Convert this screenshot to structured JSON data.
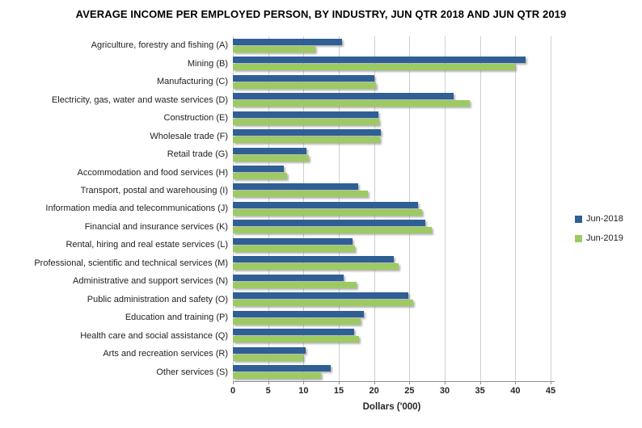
{
  "chart_data": {
    "type": "bar",
    "orientation": "horizontal",
    "title": "AVERAGE INCOME PER EMPLOYED PERSON, BY INDUSTRY, JUN QTR 2018 AND JUN QTR 2019",
    "xlabel": "Dollars ('000)",
    "xlim": [
      0,
      45
    ],
    "xticks": [
      0,
      5,
      10,
      15,
      20,
      25,
      30,
      35,
      40,
      45
    ],
    "grid": "vertical",
    "legend_position": "right",
    "categories": [
      "Agriculture, forestry and fishing (A)",
      "Mining (B)",
      "Manufacturing (C)",
      "Electricity, gas, water and waste services (D)",
      "Construction (E)",
      "Wholesale trade (F)",
      "Retail trade (G)",
      "Accommodation and food services (H)",
      "Transport, postal and warehousing (I)",
      "Information media and telecommunications (J)",
      "Financial and insurance services (K)",
      "Rental, hiring and real estate services (L)",
      "Professional, scientific and technical services (M)",
      "Administrative and support services (N)",
      "Public administration and safety (O)",
      "Education and training (P)",
      "Health care and social assistance (Q)",
      "Arts and recreation services (R)",
      "Other services (S)"
    ],
    "series": [
      {
        "name": "Jun-2018",
        "color": "#2F5F94",
        "values": [
          15.5,
          41.5,
          20.0,
          31.3,
          20.6,
          21.0,
          10.4,
          7.2,
          17.8,
          26.2,
          27.3,
          17.0,
          22.8,
          15.7,
          24.9,
          18.6,
          17.2,
          10.3,
          13.9
        ]
      },
      {
        "name": "Jun-2019",
        "color": "#9DCA63",
        "values": [
          11.7,
          40.0,
          20.3,
          33.5,
          20.7,
          20.8,
          10.8,
          7.7,
          19.1,
          26.8,
          28.2,
          17.3,
          23.5,
          17.5,
          25.5,
          18.1,
          17.9,
          10.0,
          12.5
        ]
      }
    ],
    "grid_color": "#CFCFCF",
    "axis_color": "#8F8F8F"
  }
}
